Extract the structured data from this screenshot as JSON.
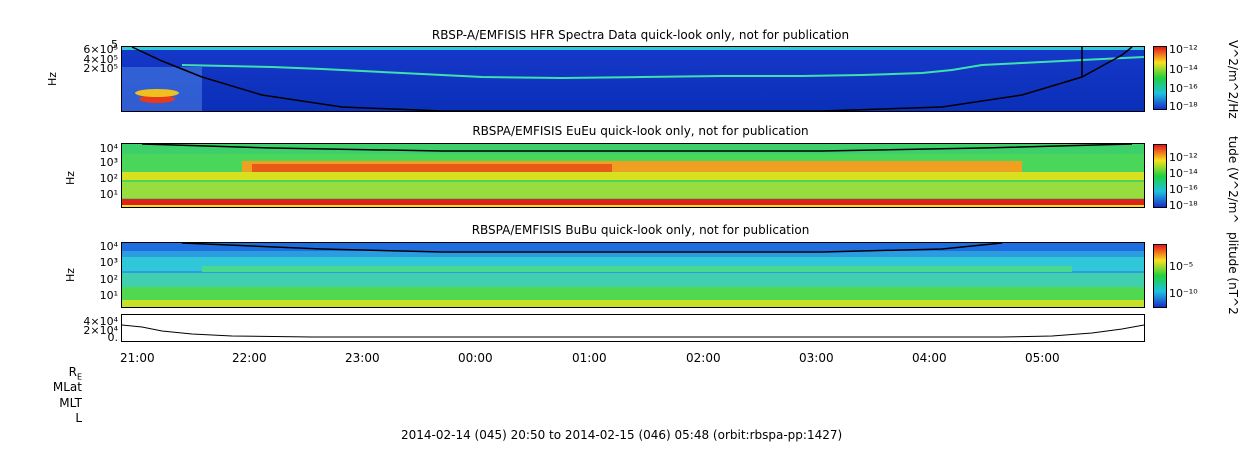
{
  "chart_data": [
    {
      "type": "heatmap",
      "title": "RBSP-A/EMFISIS  HFR Spectra Data quick-look only, not for publication",
      "ylabel": "Hz",
      "y_tick_labels": [
        "6×10⁵",
        "4×10⁵",
        "2×10⁵",
        "5"
      ],
      "colorbar_label": "V^2/m^2/Hz",
      "colorbar_ticks": [
        "10⁻¹²",
        "10⁻¹⁴",
        "10⁻¹⁶",
        "10⁻¹⁸"
      ]
    },
    {
      "type": "heatmap",
      "title": "RBSPA/EMFISIS  EuEu quick-look only, not for publication",
      "ylabel": "Hz",
      "y_tick_labels": [
        "10⁴",
        "10³",
        "10²",
        "10¹"
      ],
      "colorbar_label": "tude (V^2/m^",
      "colorbar_ticks": [
        "10⁻¹²",
        "10⁻¹⁴",
        "10⁻¹⁶",
        "10⁻¹⁸"
      ]
    },
    {
      "type": "heatmap",
      "title": "RBSPA/EMFISIS  BuBu quick-look only, not for publication",
      "ylabel": "Hz",
      "y_tick_labels": [
        "10⁴",
        "10³",
        "10²",
        "10¹"
      ],
      "colorbar_label": "plitude (nT^2",
      "colorbar_ticks": [
        "10⁻⁵",
        "10⁻¹⁰"
      ]
    },
    {
      "type": "line",
      "y_tick_labels": [
        "4×10⁴",
        "2×10⁴",
        "0."
      ]
    }
  ],
  "x_tick_labels": [
    "21:00",
    "22:00",
    "23:00",
    "00:00",
    "01:00",
    "02:00",
    "03:00",
    "04:00",
    "05:00"
  ],
  "ephemeris_labels": [
    "R",
    "MLat",
    "MLT",
    "L"
  ],
  "re_subscript": "E",
  "footer": "2014-02-14 (045) 20:50 to 2014-02-15 (046) 05:48 (orbit:rbspa-pp:1427)"
}
